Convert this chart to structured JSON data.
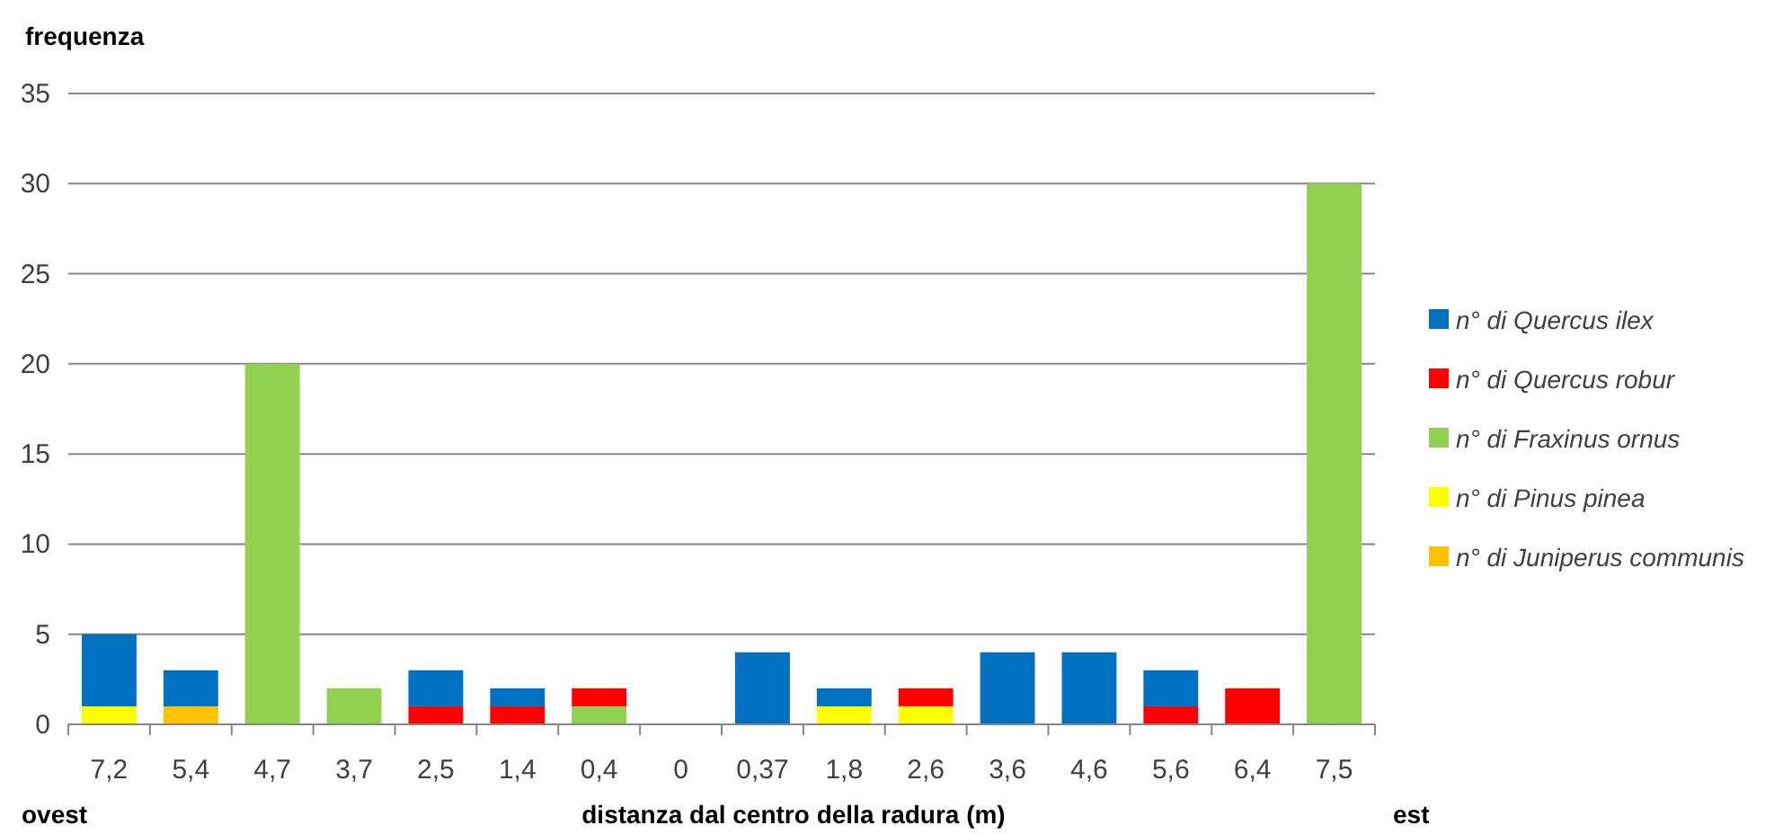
{
  "chart_data": {
    "type": "bar",
    "stacked": true,
    "xlabel": "distanza dal centro della radura (m)",
    "ylabel": "frequenza",
    "annotations": [
      "ovest",
      "est"
    ],
    "categories": [
      "7,2",
      "5,4",
      "4,7",
      "3,7",
      "2,5",
      "1,4",
      "0,4",
      "0",
      "0,37",
      "1,8",
      "2,6",
      "3,6",
      "4,6",
      "5,6",
      "6,4",
      "7,5"
    ],
    "series": [
      {
        "name": "n° di Juniperus communis",
        "color": "#ffc000",
        "values": [
          0,
          1,
          0,
          0,
          0,
          0,
          0,
          0,
          0,
          0,
          0,
          0,
          0,
          0,
          0,
          0
        ]
      },
      {
        "name": "n° di Pinus pinea",
        "color": "#ffff00",
        "values": [
          1,
          0,
          0,
          0,
          0,
          0,
          0,
          0,
          0,
          1,
          1,
          0,
          0,
          0,
          0,
          0
        ]
      },
      {
        "name": "n° di Fraxinus ornus",
        "color": "#92d050",
        "values": [
          0,
          0,
          20,
          2,
          0,
          0,
          1,
          0,
          0,
          0,
          0,
          0,
          0,
          0,
          0,
          30
        ]
      },
      {
        "name": "n° di Quercus robur",
        "color": "#ff0000",
        "values": [
          0,
          0,
          0,
          0,
          1,
          1,
          1,
          0,
          0,
          0,
          1,
          0,
          0,
          1,
          2,
          0
        ]
      },
      {
        "name": "n° di Quercus ilex",
        "color": "#0070c0",
        "values": [
          4,
          2,
          0,
          0,
          2,
          1,
          0,
          0,
          4,
          1,
          0,
          4,
          4,
          2,
          0,
          0
        ]
      }
    ],
    "ylim": [
      0,
      35
    ],
    "yticks": [
      0,
      5,
      10,
      15,
      20,
      25,
      30,
      35
    ],
    "grid": "y",
    "legend": "right"
  }
}
